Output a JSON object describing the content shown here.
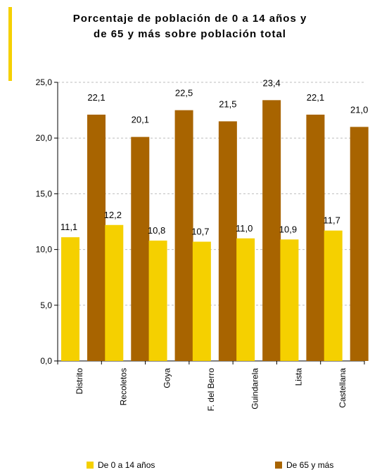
{
  "chart_data": {
    "type": "bar",
    "title_line1": "Porcentaje de población de 0 a 14 años y",
    "title_line2": "de 65 y más sobre población total",
    "categories": [
      "Distrito",
      "Recoletos",
      "Goya",
      "F. del Berro",
      "Guindarela",
      "Lista",
      "Castellana"
    ],
    "series": [
      {
        "name": "De 0 a 14 años",
        "color": "#f5d000",
        "values": [
          11.1,
          12.2,
          10.8,
          10.7,
          11.0,
          10.9,
          11.7
        ],
        "labels": [
          "11,1",
          "12,2",
          "10,8",
          "10,7",
          "11,0",
          "10,9",
          "11,7"
        ]
      },
      {
        "name": "De 65 y más",
        "color": "#a86400",
        "values": [
          22.1,
          20.1,
          22.5,
          21.5,
          23.4,
          22.1,
          21.0
        ],
        "labels": [
          "22,1",
          "20,1",
          "22,5",
          "21,5",
          "23,4",
          "22,1",
          "21,0"
        ]
      }
    ],
    "ylim": [
      0,
      25
    ],
    "yticks": [
      0,
      5,
      10,
      15,
      20,
      25
    ],
    "ytick_labels": [
      "0,0",
      "5,0",
      "10,0",
      "15,0",
      "20,0",
      "25,0"
    ],
    "grid": true,
    "legend_position": "bottom"
  }
}
